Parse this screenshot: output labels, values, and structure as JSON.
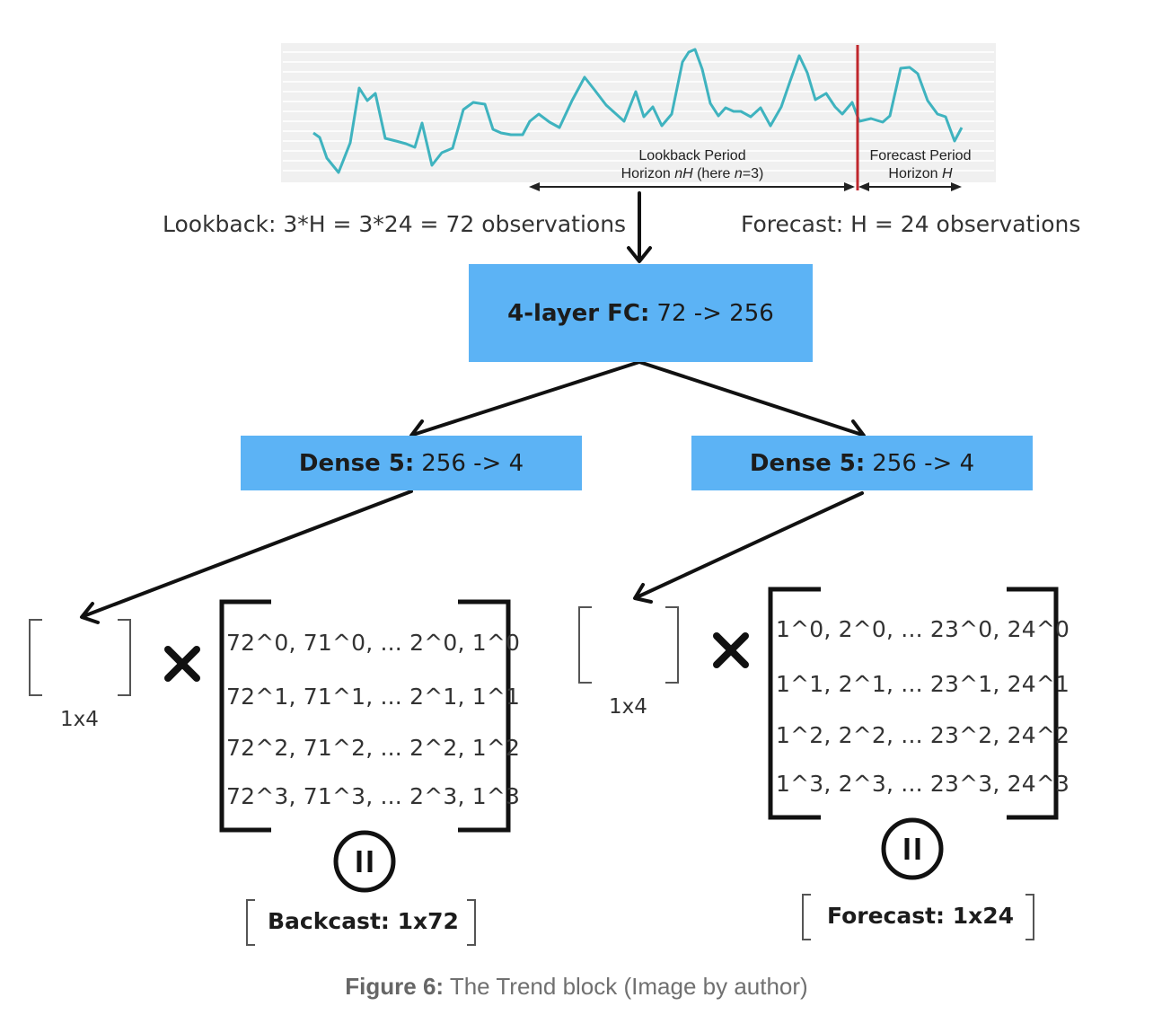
{
  "plot": {
    "lookback_label_1": "Lookback Period",
    "lookback_label_2_prefix": "Horizon ",
    "lookback_label_2_nh": "nH",
    "lookback_label_2_mid": " (here ",
    "lookback_label_2_n": "n",
    "lookback_label_2_suffix": "=3)",
    "forecast_label_1": "Forecast Period",
    "forecast_label_2_prefix": "Horizon ",
    "forecast_label_2_h": "H",
    "line_color": "#3fb3bf",
    "split_color": "#c0272d"
  },
  "lookback_text": "Lookback: 3*H = 3*24 = 72 observations",
  "forecast_text": "Forecast: H = 24 observations",
  "fc_box": {
    "bold": "4-layer FC:",
    "rest": "72 -> 256"
  },
  "dense_left": {
    "bold": "Dense 5:",
    "rest": "256 -> 4"
  },
  "dense_right": {
    "bold": "Dense 5:",
    "rest": "256 -> 4"
  },
  "left_vector_dim": "1x4",
  "right_vector_dim": "1x4",
  "left_matrix_rows": [
    "72^0,  71^0, ... 2^0, 1^0",
    "72^1,  71^1, ... 2^1, 1^1",
    "72^2,  71^2, ... 2^2, 1^2",
    "72^3,  71^3, ... 2^3, 1^3"
  ],
  "right_matrix_rows": [
    "1^0,  2^0, ... 23^0, 24^0",
    "1^1,  2^1, ... 23^1, 24^1",
    "1^2,  2^2, ... 23^2, 24^2",
    "1^3,  2^3, ... 23^3, 24^3"
  ],
  "left_result": "Backcast: 1x72",
  "right_result": "Forecast: 1x24",
  "figure_caption": {
    "bold": "Figure 6:",
    "rest": " The Trend block (Image by author)"
  },
  "colors": {
    "box": "#5cb3f5"
  }
}
